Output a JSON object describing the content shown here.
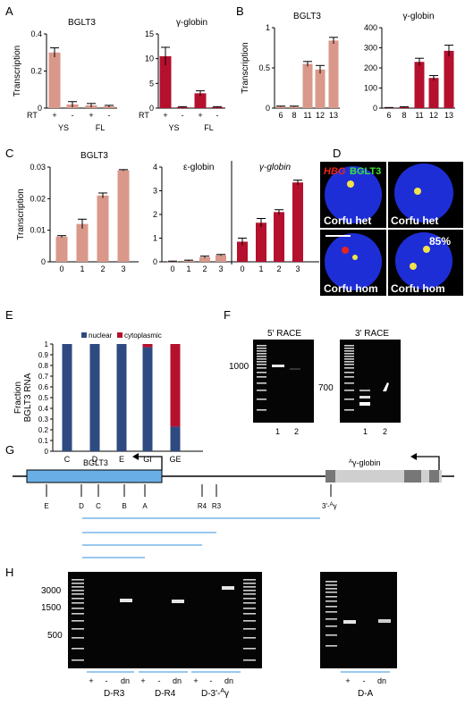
{
  "colors": {
    "pink": "#d9988a",
    "red": "#b5102e",
    "nuclear": "#2e4a80",
    "cytoplasmic": "#b5102e",
    "gene_blue": "#6aaee6",
    "line_blue": "#5aa8e4",
    "nucleus_blue": "#2030d8",
    "gel_bg": "#050505"
  },
  "panels": {
    "A": "A",
    "B": "B",
    "C": "C",
    "D": "D",
    "E": "E",
    "F": "F",
    "G": "G",
    "H": "H"
  },
  "chart_data": [
    {
      "id": "A1",
      "type": "bar",
      "title": "BGLT3",
      "ylabel": "Transcription",
      "row_label": "RT",
      "categories": [
        "+",
        "-",
        "+",
        "-"
      ],
      "group_labels": [
        "YS",
        "FL"
      ],
      "values": [
        0.3,
        0.02,
        0.015,
        0.01
      ],
      "errors": [
        0.025,
        0.015,
        0.01,
        0.005
      ],
      "ylim": [
        0,
        0.4
      ],
      "yticks": [
        "0",
        "0.2",
        "0.4"
      ],
      "color": "pink"
    },
    {
      "id": "A2",
      "type": "bar",
      "title": "γ-globin",
      "row_label": "RT",
      "categories": [
        "+",
        "-",
        "+",
        "-"
      ],
      "group_labels": [
        "YS",
        "FL"
      ],
      "values": [
        10.5,
        0.2,
        3.0,
        0.2
      ],
      "errors": [
        1.8,
        0.1,
        0.5,
        0.1
      ],
      "ylim": [
        0,
        15
      ],
      "yticks": [
        "0",
        "5",
        "10",
        "15"
      ],
      "color": "red"
    },
    {
      "id": "B1",
      "type": "bar",
      "title": "BGLT3",
      "ylabel": "Transcription",
      "categories": [
        "6",
        "8",
        "11",
        "12",
        "13"
      ],
      "values": [
        0.02,
        0.02,
        0.55,
        0.48,
        0.84
      ],
      "errors": [
        0.005,
        0.005,
        0.03,
        0.05,
        0.04
      ],
      "ylim": [
        0,
        1
      ],
      "yticks": [
        "0",
        "0.5",
        "1"
      ],
      "color": "pink"
    },
    {
      "id": "B2",
      "type": "bar",
      "title": "γ-globin",
      "categories": [
        "6",
        "8",
        "11",
        "12",
        "13"
      ],
      "values": [
        2,
        5,
        230,
        150,
        285
      ],
      "errors": [
        1,
        2,
        18,
        12,
        28
      ],
      "ylim": [
        0,
        400
      ],
      "yticks": [
        "0",
        "100",
        "200",
        "300",
        "400"
      ],
      "color": "red"
    },
    {
      "id": "C1",
      "type": "bar",
      "title": "BGLT3",
      "ylabel": "Transcription",
      "categories": [
        "0",
        "1",
        "2",
        "3"
      ],
      "values": [
        0.008,
        0.012,
        0.021,
        0.029
      ],
      "errors": [
        0.0003,
        0.0015,
        0.0008,
        0.0002
      ],
      "ylim": [
        0,
        0.03
      ],
      "yticks": [
        "0",
        "0.01",
        "0.02",
        "0.03"
      ],
      "color": "pink"
    },
    {
      "id": "C2",
      "type": "bar",
      "subtitles": [
        "ε-globin",
        "γ-globin"
      ],
      "categories": [
        "0",
        "1",
        "2",
        "3",
        "0",
        "1",
        "2",
        "3"
      ],
      "values": [
        0.02,
        0.05,
        0.2,
        0.28,
        0.85,
        1.65,
        2.1,
        3.35
      ],
      "errors": [
        0.01,
        0.02,
        0.04,
        0.03,
        0.15,
        0.18,
        0.1,
        0.1
      ],
      "ylim": [
        0,
        4
      ],
      "yticks": [
        "0",
        "1",
        "2",
        "3",
        "4"
      ],
      "colors": [
        "pink",
        "pink",
        "pink",
        "pink",
        "red",
        "red",
        "red",
        "red"
      ]
    },
    {
      "id": "E",
      "type": "bar",
      "ylabel": "Fraction BGLT3 RNA",
      "legend": [
        "nuclear",
        "cytoplasmic"
      ],
      "categories": [
        "C",
        "D",
        "E",
        "GI",
        "GE"
      ],
      "series": [
        {
          "name": "nuclear",
          "values": [
            1,
            1,
            1,
            0.97,
            0.23
          ]
        },
        {
          "name": "cytoplasmic",
          "values": [
            0,
            0,
            0,
            0.03,
            0.77
          ]
        }
      ],
      "ylim": [
        0,
        1
      ],
      "yticks": [
        "0",
        "0.1",
        "0.2",
        "0.3",
        "0.4",
        "0.5",
        "0.6",
        "0.7",
        "0.8",
        "0.9",
        "1"
      ]
    }
  ],
  "panelD": {
    "hbg": "HBG",
    "bglt3": "BGLT3",
    "pct": "85%",
    "cells": [
      "Corfu het",
      "Corfu het",
      "Corfu hom",
      "Corfu hom"
    ]
  },
  "panelF": {
    "race5": "5' RACE",
    "race3": "3' RACE",
    "marker5": "1000",
    "marker3": "700",
    "lanes": [
      "1",
      "2"
    ]
  },
  "panelG": {
    "gene_left": "BGLT3",
    "gene_right": "γ-globin",
    "gene_right_sup": "A",
    "sites": [
      "E",
      "D",
      "C",
      "B",
      "A",
      "R4",
      "R3"
    ],
    "site3": "3'-",
    "site3_sup": "A",
    "site3_end": "γ"
  },
  "panelH": {
    "markers": [
      "3000",
      "1500",
      "500"
    ],
    "lanes": [
      "+",
      "-",
      "dn",
      "+",
      "-",
      "dn",
      "+",
      "-",
      "dn"
    ],
    "groups": [
      "D-R3",
      "D-R4",
      "D-3'-"
    ],
    "group_sup": "A",
    "group_end": "γ",
    "right_lanes": [
      "+",
      "-",
      "dn"
    ],
    "right_group": "D-A"
  }
}
